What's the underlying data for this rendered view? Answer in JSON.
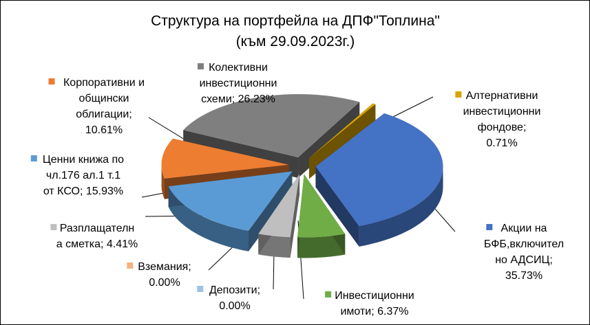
{
  "chart_data": {
    "type": "pie",
    "title": "Структура на портфейла на ДПФ\"Топлина\"",
    "subtitle": "(към 29.09.2023г.)",
    "slices": [
      {
        "lines": [
          "Акции  на",
          "БФБ,включител",
          "но АДСИЦ;",
          "35.73%"
        ],
        "value": 35.73,
        "color": "#4472C4"
      },
      {
        "lines": [
          "Инвестиционни",
          "имоти;  6.37%"
        ],
        "value": 6.37,
        "color": "#70AD47"
      },
      {
        "lines": [
          "Депозити;",
          "0.00%"
        ],
        "value": 0.0,
        "color": "#9DC3E6"
      },
      {
        "lines": [
          "Вземания;",
          "0.00%"
        ],
        "value": 0.0,
        "color": "#F4B183"
      },
      {
        "lines": [
          "Разплащателн",
          "а сметка; 4.41%"
        ],
        "value": 4.41,
        "color": "#BFBFBF"
      },
      {
        "lines": [
          "Ценни книжа по",
          "чл.176 ал.1 т.1",
          "от КСО; 15.93%"
        ],
        "value": 15.93,
        "color": "#5B9BD5"
      },
      {
        "lines": [
          "Корпоративни  и",
          "общински",
          "облигации;",
          "10.61%"
        ],
        "value": 10.61,
        "color": "#ED7D31"
      },
      {
        "lines": [
          "Колективни",
          "инвестиционни",
          "схеми;  26.23%"
        ],
        "value": 26.23,
        "color": "#7F7F7F"
      },
      {
        "lines": [
          "Алтернативни",
          "инвестиционни",
          "фондове;",
          "0.71%"
        ],
        "value": 0.71,
        "color": "#D9A400"
      }
    ]
  }
}
